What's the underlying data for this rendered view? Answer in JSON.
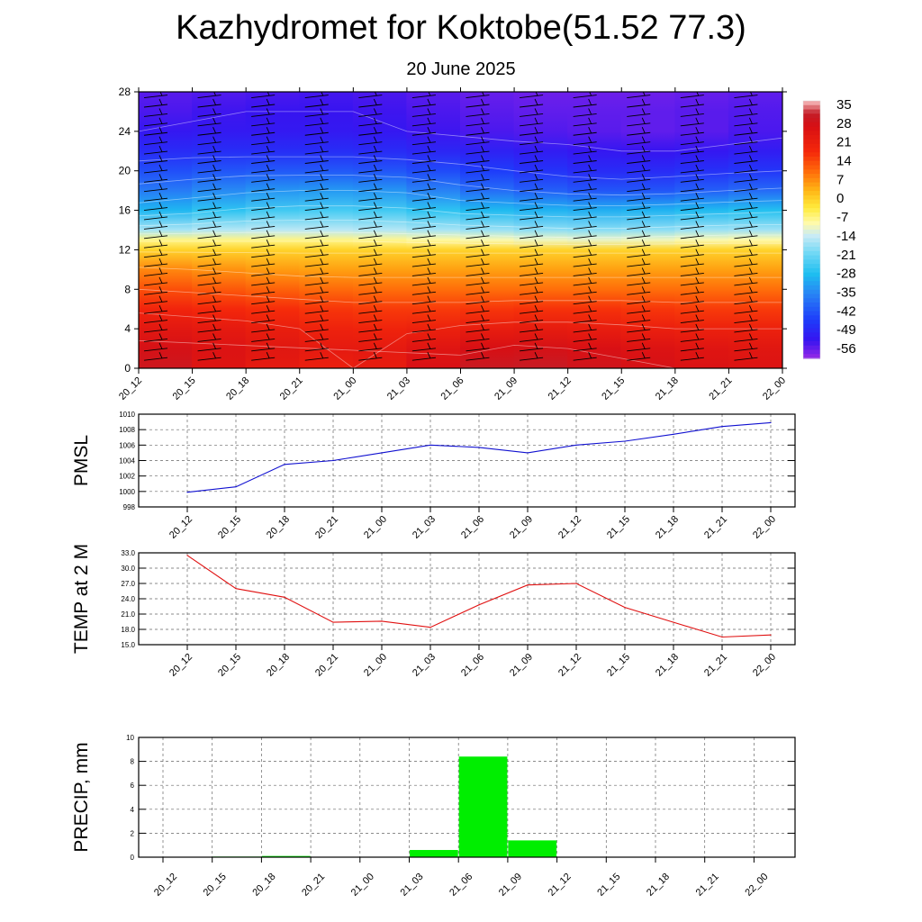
{
  "header": {
    "title": "Kazhydromet for Koktobe(51.52 77.3)",
    "subtitle": "20 June 2025"
  },
  "time_labels": [
    "20_12",
    "20_15",
    "20_18",
    "20_21",
    "21_00",
    "21_03",
    "21_06",
    "21_09",
    "21_12",
    "21_15",
    "21_18",
    "21_21",
    "22_00"
  ],
  "colors": {
    "pmsl_line": "#1010d0",
    "temp_line": "#e01010",
    "precip_bar": "#00ee00"
  },
  "chart_data": [
    {
      "id": "cross-section",
      "type": "heatmap",
      "x_tick_labels": [
        "20_12",
        "20_15",
        "20_18",
        "20_21",
        "21_00",
        "21_03",
        "21_06",
        "21_09",
        "21_12",
        "21_15",
        "21_18",
        "21_21",
        "22_00"
      ],
      "y_ticks": [
        0,
        4,
        8,
        12,
        16,
        20,
        24,
        28
      ],
      "ylim": [
        0,
        28
      ],
      "colorbar_labels": [
        "35",
        "28",
        "21",
        "14",
        "7",
        "0",
        "-7",
        "-14",
        "-21",
        "-28",
        "-35",
        "-42",
        "-49",
        "-56"
      ],
      "colorbar_range": [
        -63,
        38
      ],
      "levels": [
        0,
        2,
        4,
        6,
        8,
        10,
        12,
        13,
        14,
        16,
        18,
        20,
        22,
        24,
        26,
        28
      ],
      "temperature_by_level": [
        [
          34,
          27,
          25,
          22,
          21,
          25,
          30,
          33,
          31,
          29,
          28,
          26,
          27
        ],
        [
          30,
          27,
          26,
          24,
          23,
          24,
          27,
          29,
          28,
          27,
          26,
          25,
          25
        ],
        [
          25,
          24,
          23,
          21,
          20,
          20,
          22,
          23,
          23,
          22,
          21,
          21,
          21
        ],
        [
          20,
          19,
          18,
          17,
          16,
          16,
          16,
          17,
          17,
          17,
          16,
          16,
          16
        ],
        [
          14,
          13,
          12,
          11,
          10,
          10,
          10,
          10,
          10,
          10,
          10,
          10,
          10
        ],
        [
          8,
          7,
          6,
          5,
          5,
          5,
          5,
          5,
          5,
          5,
          5,
          5,
          5
        ],
        [
          -1,
          -1,
          -1,
          -1,
          -1,
          -1,
          -1,
          -1,
          -1,
          -1,
          -1,
          -1,
          -1
        ],
        [
          -8,
          -8,
          -8,
          -8,
          -8,
          -9,
          -10,
          -11,
          -12,
          -12,
          -11,
          -10,
          -10
        ],
        [
          -18,
          -17,
          -16,
          -16,
          -16,
          -17,
          -18,
          -19,
          -20,
          -20,
          -19,
          -18,
          -18
        ],
        [
          -32,
          -30,
          -27,
          -26,
          -26,
          -27,
          -30,
          -31,
          -32,
          -32,
          -31,
          -30,
          -29
        ],
        [
          -40,
          -38,
          -36,
          -35,
          -35,
          -36,
          -40,
          -42,
          -44,
          -45,
          -44,
          -42,
          -41
        ],
        [
          -46,
          -45,
          -44,
          -44,
          -44,
          -45,
          -47,
          -49,
          -51,
          -52,
          -51,
          -50,
          -49
        ],
        [
          -52,
          -51,
          -51,
          -51,
          -51,
          -52,
          -53,
          -54,
          -55,
          -56,
          -56,
          -55,
          -54
        ],
        [
          -56,
          -55,
          -55,
          -55,
          -55,
          -56,
          -57,
          -58,
          -58,
          -59,
          -59,
          -58,
          -57
        ],
        [
          -58,
          -57,
          -56,
          -56,
          -56,
          -57,
          -58,
          -59,
          -59,
          -59,
          -59,
          -58,
          -58
        ],
        [
          -59,
          -58,
          -58,
          -57,
          -57,
          -58,
          -59,
          -60,
          -60,
          -60,
          -60,
          -59,
          -59
        ]
      ]
    },
    {
      "id": "pmsl",
      "type": "line",
      "ylabel": "PMSL",
      "x": [
        "20_12",
        "20_15",
        "20_18",
        "20_21",
        "21_00",
        "21_03",
        "21_06",
        "21_09",
        "21_12",
        "21_15",
        "21_18",
        "21_21",
        "22_00"
      ],
      "values": [
        999.9,
        1000.6,
        1003.5,
        1004.0,
        1005.0,
        1006.0,
        1005.7,
        1005.0,
        1006.0,
        1006.5,
        1007.4,
        1008.4,
        1008.9
      ],
      "ylim": [
        998,
        1010
      ],
      "y_ticks": [
        "998",
        "1000",
        "1002",
        "1004",
        "1006",
        "1008",
        "1010"
      ],
      "grid": true
    },
    {
      "id": "temp2m",
      "type": "line",
      "ylabel": "TEMP at 2 M",
      "x": [
        "20_12",
        "20_15",
        "20_18",
        "20_21",
        "21_00",
        "21_03",
        "21_06",
        "21_09",
        "21_12",
        "21_15",
        "21_18",
        "21_21",
        "22_00"
      ],
      "values": [
        32.5,
        26.0,
        24.3,
        19.4,
        19.6,
        18.4,
        22.8,
        26.7,
        27.0,
        22.3,
        19.4,
        16.5,
        16.9
      ],
      "ylim": [
        15,
        33
      ],
      "y_ticks": [
        "15.0",
        "18.0",
        "21.0",
        "24.0",
        "27.0",
        "30.0",
        "33.0"
      ],
      "grid": true
    },
    {
      "id": "precip",
      "type": "bar",
      "ylabel": "PRECIP, mm",
      "categories": [
        "20_12",
        "20_15",
        "20_18",
        "20_21",
        "21_00",
        "21_03",
        "21_06",
        "21_09",
        "21_12",
        "21_15",
        "21_18",
        "21_21",
        "22_00"
      ],
      "values": [
        0,
        0.05,
        0.1,
        0,
        0,
        0.6,
        8.4,
        1.4,
        0,
        0,
        0,
        0,
        0
      ],
      "ylim": [
        0,
        10
      ],
      "y_ticks": [
        "0",
        "2",
        "4",
        "6",
        "8",
        "10"
      ],
      "grid": true
    }
  ]
}
